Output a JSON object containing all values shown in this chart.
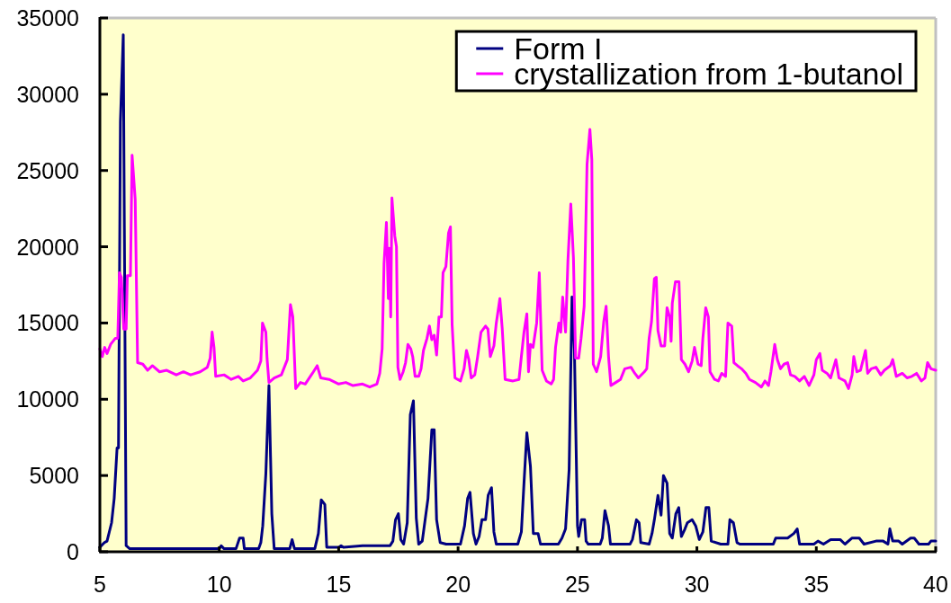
{
  "chart_data": {
    "type": "line",
    "xlim": [
      5,
      40
    ],
    "ylim": [
      0,
      35000
    ],
    "xticks": [
      5,
      10,
      15,
      20,
      25,
      30,
      35,
      40
    ],
    "yticks": [
      0,
      5000,
      10000,
      15000,
      20000,
      25000,
      30000,
      35000
    ],
    "legend": "top right",
    "series": [
      {
        "name": "Form I",
        "color": "#000080",
        "x": [
          5.0,
          5.19,
          5.3,
          5.49,
          5.6,
          5.72,
          5.78,
          5.86,
          5.98,
          6.1,
          6.25,
          10.0,
          10.08,
          10.2,
          10.7,
          10.85,
          11.0,
          11.05,
          11.65,
          11.74,
          11.82,
          11.95,
          12.08,
          12.2,
          12.3,
          12.95,
          13.05,
          13.15,
          14.0,
          14.15,
          14.27,
          14.42,
          14.5,
          15.0,
          15.1,
          15.2,
          16.0,
          17.15,
          17.27,
          17.38,
          17.5,
          17.6,
          17.72,
          17.87,
          18.0,
          18.13,
          18.25,
          18.35,
          18.5,
          18.62,
          18.74,
          18.9,
          19.0,
          19.1,
          19.25,
          19.5,
          20.1,
          20.27,
          20.4,
          20.5,
          20.64,
          20.75,
          20.88,
          21.0,
          21.15,
          21.26,
          21.4,
          21.5,
          21.6,
          22.5,
          22.65,
          22.76,
          22.88,
          23.03,
          23.15,
          23.35,
          23.45,
          24.2,
          24.35,
          24.5,
          24.65,
          24.77,
          24.87,
          25.0,
          25.05,
          25.17,
          25.3,
          25.36,
          25.45,
          25.95,
          26.04,
          26.15,
          26.3,
          26.38,
          27.2,
          27.3,
          27.47,
          27.58,
          27.65,
          28.0,
          28.12,
          28.22,
          28.37,
          28.5,
          28.6,
          28.75,
          28.86,
          28.97,
          29.12,
          29.24,
          29.35,
          29.5,
          29.6,
          29.8,
          29.95,
          30.1,
          30.25,
          30.38,
          30.5,
          30.6,
          31.0,
          31.3,
          31.38,
          31.53,
          31.68,
          31.8,
          33.2,
          33.3,
          33.8,
          34.06,
          34.2,
          34.3,
          34.9,
          35.07,
          35.3,
          35.6,
          36.0,
          36.2,
          36.5,
          36.8,
          37.0,
          37.5,
          37.8,
          38.0,
          38.08,
          38.2,
          38.45,
          38.6,
          38.95,
          39.1,
          39.3,
          39.7,
          39.8,
          40.0
        ],
        "values": [
          300,
          600,
          700,
          1900,
          3500,
          6800,
          6800,
          28200,
          33900,
          400,
          200,
          200,
          400,
          200,
          200,
          900,
          900,
          200,
          200,
          600,
          1700,
          5100,
          10900,
          2500,
          200,
          200,
          800,
          200,
          200,
          1200,
          3400,
          3100,
          300,
          300,
          400,
          300,
          400,
          400,
          700,
          2100,
          2500,
          800,
          500,
          1900,
          9000,
          9900,
          2200,
          500,
          700,
          2100,
          3500,
          8000,
          8000,
          2100,
          600,
          500,
          500,
          1700,
          3500,
          3900,
          1200,
          500,
          1000,
          2100,
          2100,
          3700,
          4200,
          1300,
          500,
          500,
          1300,
          4500,
          7800,
          5600,
          1200,
          1200,
          500,
          500,
          900,
          1500,
          5400,
          16700,
          13300,
          1700,
          1000,
          2100,
          2100,
          700,
          500,
          500,
          900,
          2700,
          1700,
          500,
          500,
          800,
          2100,
          1900,
          600,
          500,
          1200,
          2100,
          3700,
          2400,
          5000,
          4500,
          1200,
          900,
          2500,
          2900,
          1000,
          1500,
          1900,
          2100,
          1700,
          800,
          1300,
          2900,
          2900,
          700,
          500,
          500,
          2100,
          1900,
          600,
          500,
          500,
          900,
          900,
          1200,
          1500,
          500,
          500,
          700,
          500,
          800,
          800,
          500,
          900,
          900,
          500,
          700,
          700,
          500,
          1500,
          700,
          700,
          500,
          900,
          900,
          500,
          500,
          700,
          700
        ]
      },
      {
        "name": "crystallization from 1-butanol",
        "color": "#ff00ff",
        "x": [
          5.0,
          5.1,
          5.2,
          5.3,
          5.45,
          5.65,
          5.75,
          5.82,
          5.9,
          6.0,
          6.1,
          6.15,
          6.28,
          6.35,
          6.48,
          6.58,
          6.8,
          7.0,
          7.2,
          7.5,
          7.8,
          8.2,
          8.5,
          8.8,
          9.2,
          9.5,
          9.62,
          9.7,
          9.78,
          9.85,
          10.2,
          10.5,
          10.8,
          11.0,
          11.3,
          11.6,
          11.74,
          11.81,
          11.95,
          12.0,
          12.08,
          12.3,
          12.6,
          12.85,
          12.98,
          13.08,
          13.2,
          13.4,
          13.6,
          13.9,
          14.1,
          14.25,
          14.6,
          15.0,
          15.3,
          15.6,
          16.0,
          16.3,
          16.6,
          16.72,
          16.82,
          16.9,
          17.0,
          17.08,
          17.12,
          17.18,
          17.23,
          17.35,
          17.42,
          17.48,
          17.57,
          17.7,
          17.8,
          17.9,
          18.02,
          18.1,
          18.2,
          18.35,
          18.45,
          18.55,
          18.7,
          18.8,
          18.9,
          19.0,
          19.1,
          19.2,
          19.3,
          19.37,
          19.49,
          19.6,
          19.68,
          19.75,
          19.87,
          20.1,
          20.25,
          20.35,
          20.45,
          20.55,
          20.7,
          20.82,
          20.96,
          21.15,
          21.25,
          21.35,
          21.5,
          21.6,
          21.75,
          21.85,
          21.97,
          22.3,
          22.55,
          22.65,
          22.76,
          22.88,
          22.95,
          23.03,
          23.14,
          23.29,
          23.4,
          23.52,
          23.7,
          23.9,
          24.0,
          24.08,
          24.22,
          24.3,
          24.38,
          24.5,
          24.6,
          24.72,
          24.83,
          24.92,
          25.05,
          25.15,
          25.28,
          25.4,
          25.52,
          25.6,
          25.66,
          25.8,
          25.97,
          26.1,
          26.2,
          26.3,
          26.4,
          26.6,
          26.8,
          26.98,
          27.24,
          27.4,
          27.55,
          27.8,
          27.9,
          28.0,
          28.1,
          28.22,
          28.3,
          28.37,
          28.5,
          28.65,
          28.75,
          28.86,
          28.92,
          28.97,
          29.1,
          29.25,
          29.35,
          29.5,
          29.65,
          29.8,
          29.9,
          30.05,
          30.18,
          30.25,
          30.37,
          30.48,
          30.55,
          30.74,
          30.9,
          31.04,
          31.2,
          31.3,
          31.46,
          31.55,
          31.7,
          31.87,
          32.05,
          32.2,
          32.45,
          32.7,
          32.85,
          33.0,
          33.1,
          33.26,
          33.37,
          33.5,
          33.65,
          33.8,
          33.92,
          34.1,
          34.3,
          34.5,
          34.7,
          34.9,
          35.0,
          35.15,
          35.25,
          35.45,
          35.6,
          35.82,
          35.95,
          36.2,
          36.35,
          36.5,
          36.57,
          36.7,
          36.85,
          37.06,
          37.15,
          37.3,
          37.5,
          37.7,
          37.85,
          38.1,
          38.2,
          38.35,
          38.6,
          38.8,
          39.0,
          39.2,
          39.4,
          39.55,
          39.66,
          39.8,
          40.0
        ],
        "values": [
          13300,
          12800,
          13400,
          13000,
          13600,
          14000,
          14000,
          18300,
          18000,
          14600,
          14600,
          18100,
          18100,
          26000,
          23100,
          12400,
          12300,
          11900,
          12200,
          11800,
          11900,
          11600,
          11800,
          11600,
          11800,
          12100,
          12700,
          14400,
          13400,
          11500,
          11600,
          11300,
          11500,
          11200,
          11400,
          11900,
          12500,
          15000,
          14400,
          12700,
          11100,
          11400,
          11600,
          12600,
          16200,
          15400,
          10700,
          11100,
          11000,
          11700,
          12200,
          11400,
          11300,
          11000,
          11100,
          10900,
          11000,
          10800,
          11000,
          11700,
          13300,
          18900,
          21600,
          16600,
          19900,
          15400,
          23200,
          20700,
          20000,
          12100,
          11300,
          11800,
          12400,
          13600,
          13300,
          12800,
          11500,
          11500,
          12000,
          13200,
          14000,
          14800,
          13900,
          14200,
          12900,
          15400,
          15400,
          18300,
          18700,
          20900,
          21300,
          14900,
          11400,
          11200,
          12000,
          13200,
          12600,
          11400,
          11600,
          12800,
          14400,
          14800,
          14600,
          12800,
          13500,
          15000,
          16600,
          14600,
          11300,
          11200,
          11300,
          12800,
          14400,
          15600,
          11800,
          13600,
          13400,
          15000,
          18300,
          11900,
          11200,
          11000,
          11300,
          13400,
          15000,
          14400,
          16700,
          14400,
          19100,
          22800,
          19300,
          12700,
          12700,
          14000,
          16100,
          25400,
          27700,
          25700,
          12300,
          11800,
          12800,
          15100,
          16100,
          12800,
          10900,
          11100,
          11300,
          12000,
          12100,
          11700,
          11400,
          11800,
          12000,
          14000,
          15100,
          17900,
          18000,
          14500,
          13500,
          13500,
          16000,
          15400,
          13800,
          16300,
          17700,
          17700,
          12600,
          12300,
          11800,
          12500,
          13400,
          12300,
          12200,
          14000,
          16000,
          15400,
          11800,
          11300,
          11200,
          11700,
          11500,
          15000,
          14800,
          12400,
          12200,
          12000,
          11700,
          11300,
          11100,
          10800,
          11200,
          10900,
          11800,
          13600,
          12600,
          12000,
          12300,
          12400,
          11600,
          11500,
          11200,
          11500,
          10900,
          11600,
          12600,
          13000,
          11900,
          11700,
          11400,
          12600,
          11400,
          11200,
          10700,
          11600,
          12800,
          11800,
          11900,
          13200,
          11700,
          12000,
          12100,
          11600,
          11900,
          12200,
          12600,
          11500,
          11700,
          11400,
          11500,
          11700,
          11200,
          11400,
          12400,
          12000,
          11900
        ]
      }
    ]
  }
}
